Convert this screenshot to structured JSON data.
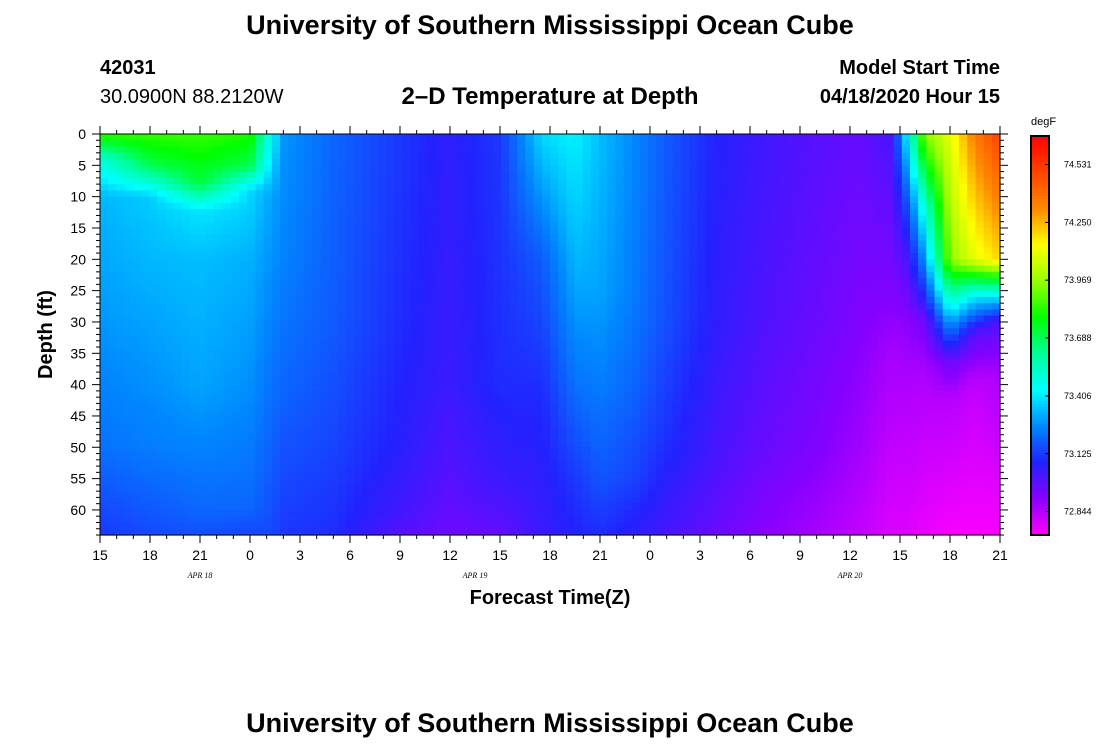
{
  "header": {
    "title": "University of Southern Mississippi Ocean Cube",
    "station_id": "42031",
    "coordinates": "30.0900N 88.2120W",
    "plot_title": "2–D Temperature at Depth",
    "model_start_label": "Model Start Time",
    "model_start_value": "04/18/2020 Hour 15"
  },
  "footer": {
    "title": "University of Southern Mississippi Ocean Cube"
  },
  "chart_data": {
    "type": "heatmap",
    "xlabel": "Forecast Time(Z)",
    "ylabel": "Depth (ft)",
    "x_tick_labels": [
      "15",
      "18",
      "21",
      "0",
      "3",
      "6",
      "9",
      "12",
      "15",
      "18",
      "21",
      "0",
      "3",
      "6",
      "9",
      "12",
      "15",
      "18",
      "21"
    ],
    "x_hours_from_start": [
      0,
      3,
      6,
      9,
      12,
      15,
      18,
      21,
      24,
      27,
      30,
      33,
      36,
      39,
      42,
      45,
      48,
      51,
      54
    ],
    "date_labels": [
      {
        "label": "APR 18",
        "hour": 6
      },
      {
        "label": "APR 19",
        "hour": 22.5
      },
      {
        "label": "APR 20",
        "hour": 45
      }
    ],
    "y_ticks": [
      0,
      5,
      10,
      15,
      20,
      25,
      30,
      35,
      40,
      45,
      50,
      55,
      60
    ],
    "ylim": [
      0,
      64
    ],
    "xlim_hours": [
      0,
      54
    ],
    "y_inverted": true,
    "colorbar": {
      "unit": "degF",
      "tick_labels": [
        "74.531",
        "74.250",
        "73.969",
        "73.688",
        "73.406",
        "73.125",
        "72.844"
      ],
      "tick_values": [
        74.531,
        74.25,
        73.969,
        73.688,
        73.406,
        73.125,
        72.844
      ],
      "range": [
        72.73,
        74.67
      ],
      "colors": [
        "#ff00ff",
        "#8800ff",
        "#2222ff",
        "#0088ff",
        "#00ffff",
        "#00ff99",
        "#00ff00",
        "#99ff00",
        "#ffff00",
        "#ff8800",
        "#ff4400",
        "#ff0000"
      ]
    },
    "profiles": [
      {
        "hour": 0,
        "depths": [
          0,
          4,
          10,
          30,
          50,
          64
        ],
        "temps": [
          73.85,
          73.5,
          73.33,
          73.28,
          73.22,
          73.12
        ]
      },
      {
        "hour": 3,
        "depths": [
          0,
          5,
          10,
          30,
          50,
          64
        ],
        "temps": [
          73.85,
          73.7,
          73.36,
          73.3,
          73.24,
          73.15
        ]
      },
      {
        "hour": 6,
        "depths": [
          0,
          8,
          12,
          20,
          40,
          50,
          60,
          64
        ],
        "temps": [
          73.85,
          73.72,
          73.4,
          73.34,
          73.3,
          73.25,
          73.2,
          73.16
        ]
      },
      {
        "hour": 9,
        "depths": [
          0,
          5,
          9,
          20,
          40,
          60,
          64
        ],
        "temps": [
          73.82,
          73.7,
          73.38,
          73.32,
          73.27,
          73.2,
          73.14
        ]
      },
      {
        "hour": 10.3,
        "depths": [
          0,
          10,
          40,
          64
        ],
        "temps": [
          73.45,
          73.3,
          73.22,
          73.15
        ]
      },
      {
        "hour": 11,
        "depths": [
          0,
          20,
          40,
          64
        ],
        "temps": [
          73.28,
          73.25,
          73.2,
          73.12
        ]
      },
      {
        "hour": 14,
        "depths": [
          0,
          30,
          50,
          64
        ],
        "temps": [
          73.2,
          73.18,
          73.14,
          73.1
        ]
      },
      {
        "hour": 18,
        "depths": [
          0,
          30,
          50,
          60,
          64
        ],
        "temps": [
          73.12,
          73.1,
          73.07,
          73.03,
          72.99
        ]
      },
      {
        "hour": 21,
        "depths": [
          0,
          40,
          55,
          64
        ],
        "temps": [
          73.06,
          73.04,
          72.99,
          72.95
        ]
      },
      {
        "hour": 24,
        "depths": [
          0,
          40,
          55,
          64
        ],
        "temps": [
          73.12,
          73.1,
          73.04,
          72.97
        ]
      },
      {
        "hour": 26.5,
        "depths": [
          0,
          20,
          40,
          55,
          64
        ],
        "temps": [
          73.38,
          73.18,
          73.1,
          73.06,
          73.04
        ]
      },
      {
        "hour": 28.5,
        "depths": [
          0,
          20,
          40,
          55,
          64
        ],
        "temps": [
          73.42,
          73.33,
          73.22,
          73.12,
          73.08
        ]
      },
      {
        "hour": 30,
        "depths": [
          0,
          25,
          40,
          55,
          64
        ],
        "temps": [
          73.34,
          73.3,
          73.24,
          73.17,
          73.1
        ]
      },
      {
        "hour": 32,
        "depths": [
          0,
          25,
          40,
          55,
          64
        ],
        "temps": [
          73.26,
          73.24,
          73.2,
          73.14,
          73.06
        ]
      },
      {
        "hour": 34,
        "depths": [
          0,
          30,
          50,
          64
        ],
        "temps": [
          73.18,
          73.16,
          73.1,
          73.02
        ]
      },
      {
        "hour": 37,
        "depths": [
          0,
          30,
          50,
          64
        ],
        "temps": [
          73.08,
          73.06,
          73.02,
          72.96
        ]
      },
      {
        "hour": 40,
        "depths": [
          0,
          30,
          50,
          64
        ],
        "temps": [
          73.03,
          73.0,
          72.96,
          72.9
        ]
      },
      {
        "hour": 43,
        "depths": [
          0,
          30,
          50,
          64
        ],
        "temps": [
          72.99,
          72.96,
          72.92,
          72.86
        ]
      },
      {
        "hour": 45.5,
        "depths": [
          0,
          30,
          50,
          64
        ],
        "temps": [
          72.97,
          72.92,
          72.87,
          72.82
        ]
      },
      {
        "hour": 47.5,
        "depths": [
          0,
          25,
          35,
          50,
          64
        ],
        "temps": [
          73.02,
          72.92,
          72.86,
          72.82,
          72.78
        ]
      },
      {
        "hour": 48.5,
        "depths": [
          0,
          10,
          20,
          30,
          40,
          64
        ],
        "temps": [
          73.45,
          73.2,
          73.02,
          72.9,
          72.85,
          72.78
        ]
      },
      {
        "hour": 49.5,
        "depths": [
          0,
          12,
          22,
          30,
          38,
          64
        ],
        "temps": [
          73.95,
          73.5,
          73.22,
          72.95,
          72.85,
          72.76
        ]
      },
      {
        "hour": 51,
        "depths": [
          0,
          20,
          30,
          36,
          42,
          64
        ],
        "temps": [
          74.1,
          73.95,
          73.3,
          72.97,
          72.84,
          72.74
        ]
      },
      {
        "hour": 52.5,
        "depths": [
          0,
          20,
          26,
          32,
          40,
          64
        ],
        "temps": [
          74.35,
          74.1,
          73.4,
          72.98,
          72.82,
          72.74
        ]
      },
      {
        "hour": 54,
        "depths": [
          0,
          20,
          26,
          30,
          38,
          64
        ],
        "temps": [
          74.5,
          74.2,
          73.4,
          73.0,
          72.86,
          72.74
        ]
      }
    ]
  }
}
